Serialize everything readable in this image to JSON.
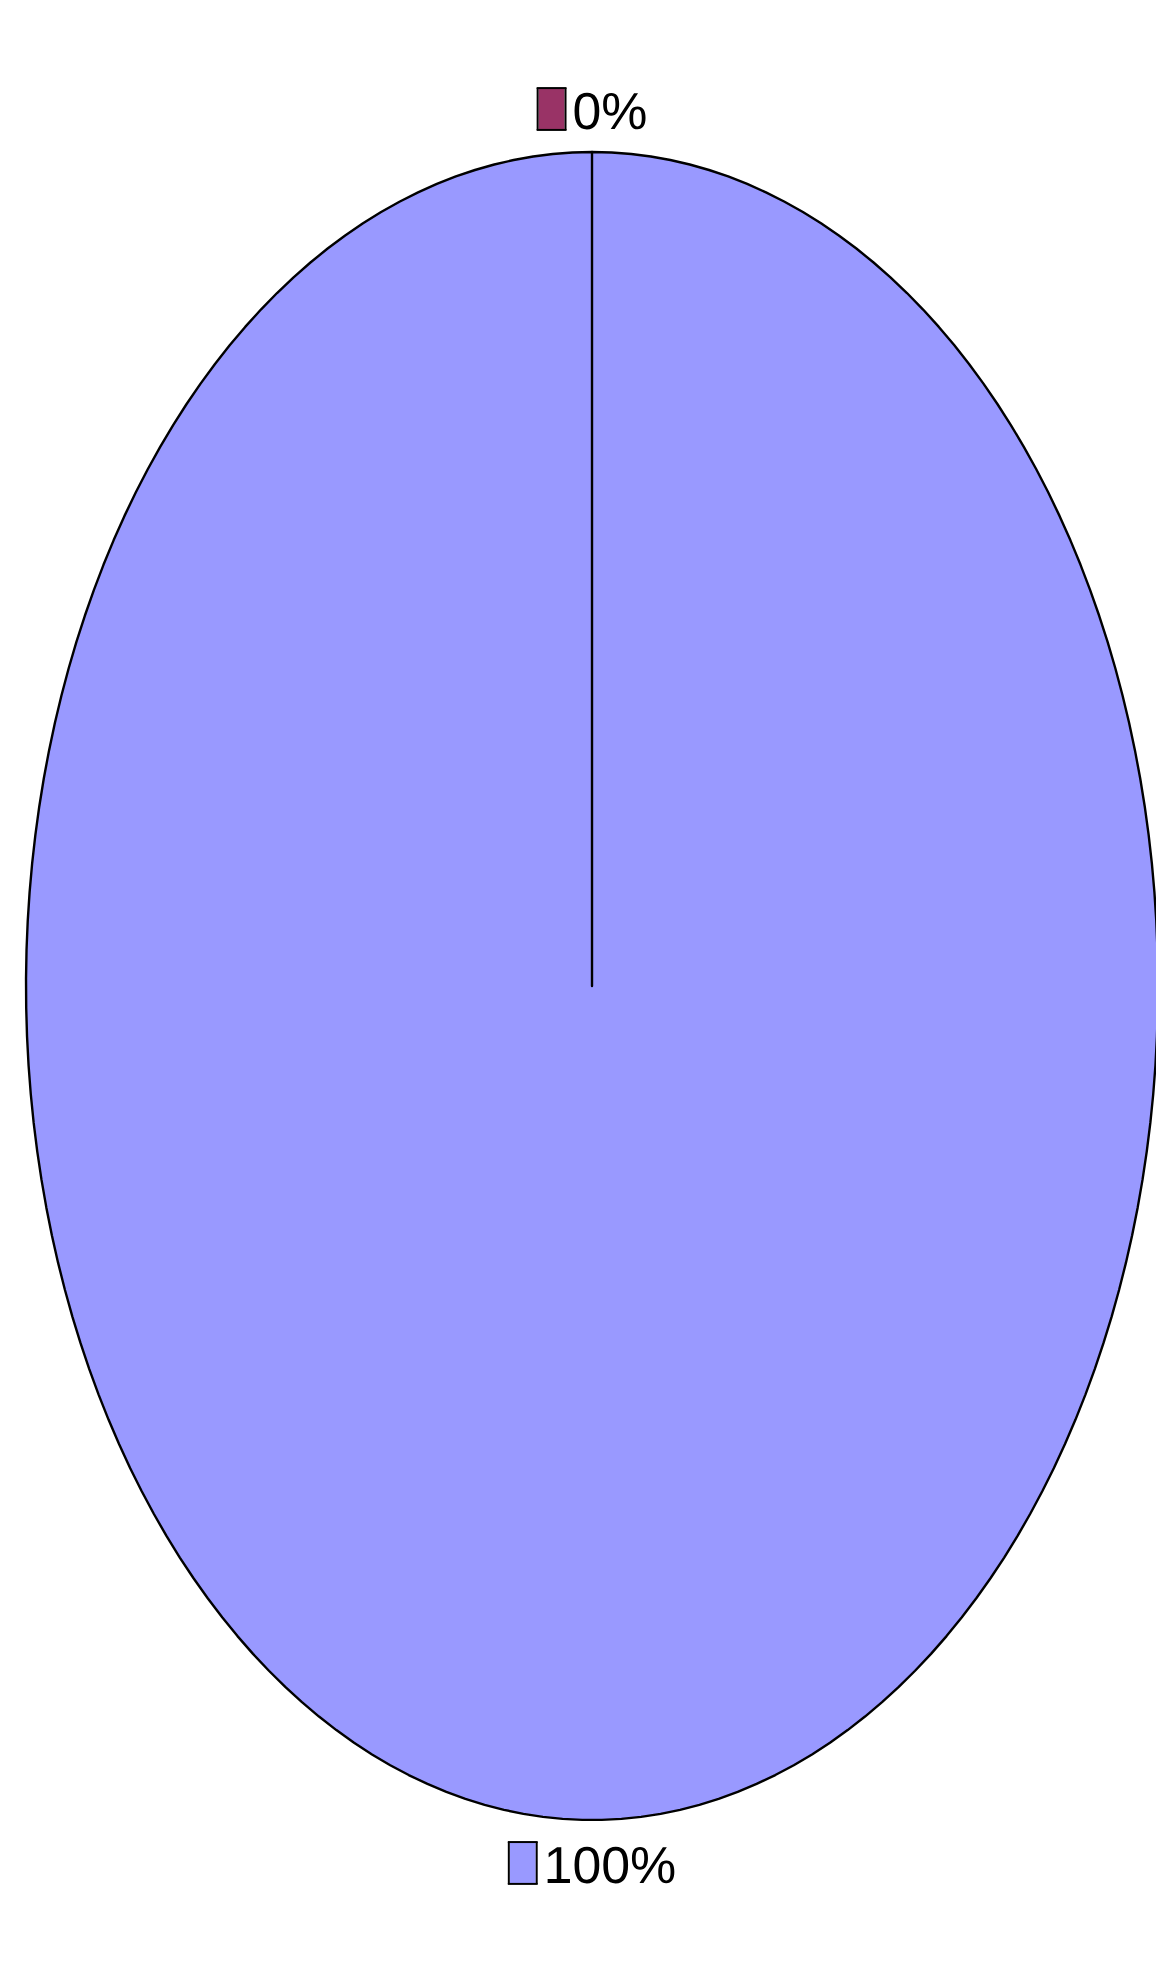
{
  "chart_data": {
    "type": "pie",
    "categories": [
      null,
      null
    ],
    "values": [
      0,
      100
    ],
    "colors": [
      "#993366",
      "#9999ff"
    ],
    "value_labels": [
      "0%",
      "100%"
    ]
  }
}
